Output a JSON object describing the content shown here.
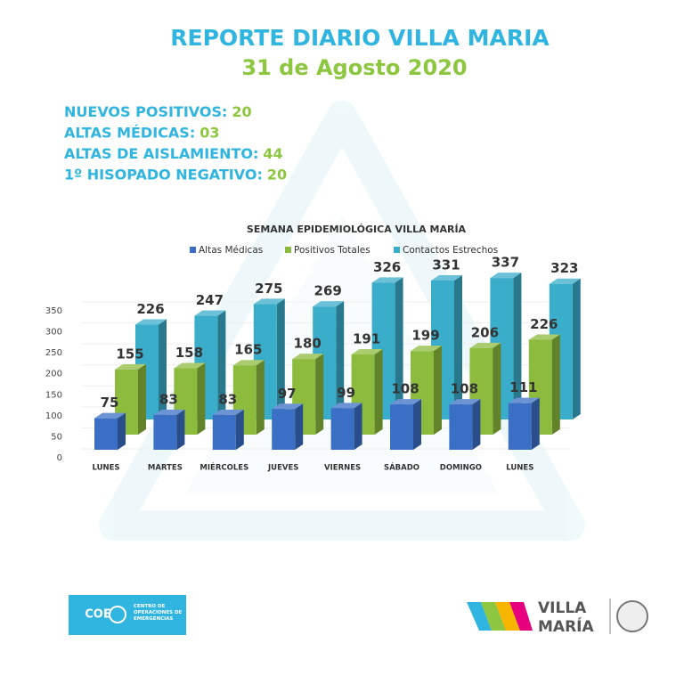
{
  "header": {
    "title": "REPORTE DIARIO VILLA MARIA",
    "date": "31 de Agosto 2020"
  },
  "stats": [
    {
      "label": "NUEVOS POSITIVOS:",
      "value": "20"
    },
    {
      "label": "ALTAS MÉDICAS:",
      "value": "03"
    },
    {
      "label": "ALTAS DE AISLAMIENTO:",
      "value": "44"
    },
    {
      "label": "1º HISOPADO NEGATIVO:",
      "value": "20"
    }
  ],
  "chart_data": {
    "type": "bar",
    "title": "SEMANA EPIDEMIOLÓGICA VILLA MARÍA",
    "categories": [
      "LUNES",
      "MARTES",
      "MIÉRCOLES",
      "JUEVES",
      "VIERNES",
      "SÁBADO",
      "DOMINGO",
      "LUNES"
    ],
    "series": [
      {
        "name": "Altas Médicas",
        "color": "#3b6fc6",
        "values": [
          75,
          83,
          83,
          97,
          99,
          108,
          108,
          111
        ]
      },
      {
        "name": "Positivos Totales",
        "color": "#8dbb3d",
        "values": [
          155,
          158,
          165,
          180,
          191,
          199,
          206,
          226
        ]
      },
      {
        "name": "Contactos Estrechos",
        "color": "#3aadcb",
        "values": [
          226,
          247,
          275,
          269,
          326,
          331,
          337,
          323
        ]
      }
    ],
    "ylim": [
      0,
      350
    ],
    "yticks": [
      0,
      50,
      100,
      150,
      200,
      250,
      300,
      350
    ],
    "legend": "top"
  },
  "footer": {
    "coe_short": "COE",
    "coe_name": "CENTRO DE OPERACIONES DE EMERGENCIAS",
    "brand_line1": "VILLA",
    "brand_line2": "MARÍA"
  }
}
